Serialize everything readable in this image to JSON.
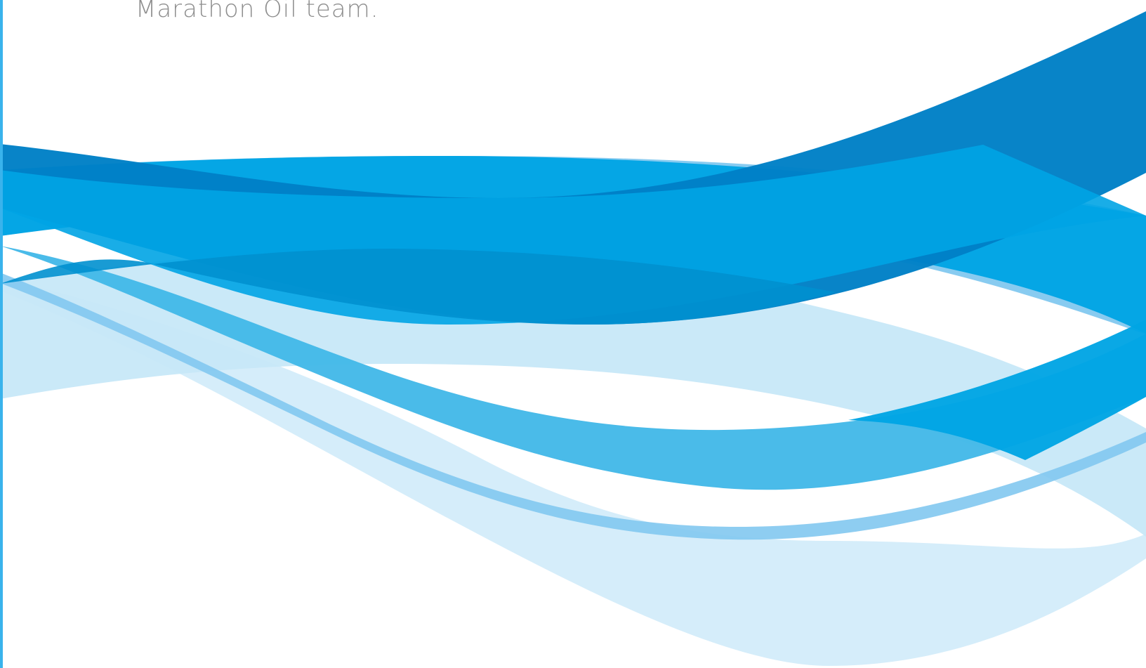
{
  "document": {
    "text_line": "Marathon Oil team."
  },
  "colors": {
    "accent_rule": "#39b3ec",
    "text_gray": "#8e8e8e",
    "wave_dark_blue": "#0080c6",
    "wave_blue": "#00a4e4",
    "wave_mid_blue": "#43b8e8",
    "wave_light_blue": "#82c8ef",
    "wave_pale_blue": "#c7e8f8",
    "wave_faint_blue": "#d3ecfa"
  }
}
